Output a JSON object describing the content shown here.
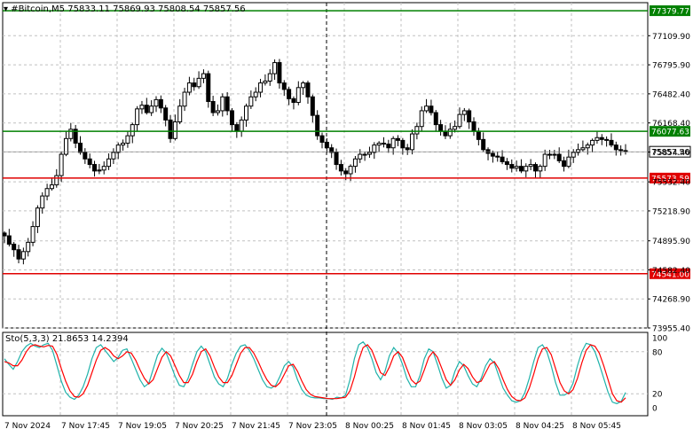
{
  "chart_header": {
    "symbol": "#Bitcoin,M5",
    "ohlc_text": "75833.11 75869.93 75808.54 75857.56"
  },
  "stoch_header": {
    "label": "Sto(5,3,3) 21.8653 14.2394"
  },
  "colors": {
    "background": "#ffffff",
    "grid": "#c0c0c0",
    "candle": "#000000",
    "green_line": "#008000",
    "red_line": "#e00000",
    "stoch_main": "#20b2aa",
    "stoch_signal": "#ff0000",
    "current_price_label": "#ffffff"
  },
  "chart_data": {
    "type": "candlestick",
    "price_axis": {
      "ylim": [
        73955.4,
        77466.6
      ],
      "ticks": [
        "77109.90",
        "76795.90",
        "76482.40",
        "76168.40",
        "75854.40",
        "75532.40",
        "75218.90",
        "74895.90",
        "74582.40",
        "74268.90",
        "73955.40"
      ]
    },
    "time_axis": {
      "labels": [
        "7 Nov 2024",
        "7 Nov 17:45",
        "7 Nov 19:05",
        "7 Nov 20:25",
        "7 Nov 21:45",
        "7 Nov 23:05",
        "8 Nov 00:25",
        "8 Nov 01:45",
        "8 Nov 03:05",
        "8 Nov 04:25",
        "8 Nov 05:45"
      ]
    },
    "horizontal_levels": [
      {
        "value": 77379.77,
        "label": "77379.77",
        "color": "green"
      },
      {
        "value": 76077.63,
        "label": "76077.63",
        "color": "green"
      },
      {
        "value": 75573.59,
        "label": "75573.59",
        "color": "red"
      },
      {
        "value": 74541.0,
        "label": "74541.00",
        "color": "red"
      }
    ],
    "current_price": {
      "value": 75857.56,
      "label": "75857.56"
    },
    "close_series": [
      74950,
      74860,
      74800,
      74700,
      74780,
      74880,
      75050,
      75250,
      75380,
      75460,
      75500,
      75600,
      75830,
      76000,
      76100,
      75950,
      75850,
      75780,
      75720,
      75650,
      75660,
      75700,
      75780,
      75850,
      75930,
      75950,
      76030,
      76150,
      76320,
      76360,
      76280,
      76350,
      76420,
      76330,
      76200,
      76000,
      76180,
      76350,
      76500,
      76600,
      76560,
      76650,
      76700,
      76400,
      76280,
      76300,
      76450,
      76300,
      76150,
      76080,
      76200,
      76350,
      76450,
      76500,
      76600,
      76620,
      76700,
      76820,
      76600,
      76530,
      76430,
      76390,
      76550,
      76600,
      76450,
      76250,
      76030,
      75960,
      75900,
      75850,
      75720,
      75650,
      75620,
      75700,
      75780,
      75830,
      75830,
      75850,
      75930,
      75950,
      75940,
      75900,
      76000,
      75980,
      75900,
      75880,
      76050,
      76130,
      76300,
      76350,
      76280,
      76150,
      76080,
      76030,
      76100,
      76130,
      76260,
      76300,
      76180,
      76080,
      75990,
      75880,
      75840,
      75810,
      75800,
      75750,
      75720,
      75680,
      75700,
      75650,
      75700,
      75720,
      75650,
      75700,
      75830,
      75830,
      75830,
      75760,
      75700,
      75800,
      75850,
      75880,
      75900,
      75930,
      75980,
      76010,
      75990,
      75980,
      75930,
      75880,
      75870,
      75858
    ],
    "stochastic": {
      "name": "Sto(5,3,3)",
      "main_value": 21.8653,
      "signal_value": 14.2394,
      "levels": [
        20,
        80
      ],
      "axis_ticks": [
        "100",
        "80",
        "20",
        "0"
      ],
      "main_series": [
        70,
        62,
        55,
        66,
        80,
        88,
        92,
        88,
        86,
        90,
        92,
        82,
        60,
        38,
        22,
        15,
        12,
        18,
        30,
        48,
        70,
        86,
        90,
        82,
        74,
        66,
        72,
        82,
        84,
        70,
        55,
        40,
        30,
        35,
        55,
        75,
        85,
        78,
        62,
        45,
        32,
        30,
        42,
        62,
        80,
        88,
        80,
        62,
        44,
        34,
        30,
        42,
        62,
        78,
        88,
        90,
        82,
        70,
        55,
        40,
        30,
        28,
        32,
        45,
        60,
        66,
        58,
        40,
        26,
        18,
        15,
        14,
        14,
        13,
        13,
        12,
        15,
        14,
        18,
        40,
        70,
        90,
        94,
        86,
        70,
        50,
        40,
        52,
        74,
        86,
        78,
        62,
        42,
        30,
        30,
        46,
        70,
        84,
        80,
        62,
        42,
        28,
        32,
        52,
        66,
        60,
        46,
        34,
        30,
        42,
        60,
        70,
        64,
        46,
        28,
        18,
        10,
        8,
        10,
        22,
        42,
        66,
        86,
        90,
        80,
        60,
        36,
        18,
        18,
        22,
        35,
        60,
        80,
        92,
        90,
        80,
        62,
        42,
        22,
        8,
        6,
        9,
        21.9
      ],
      "signal_series": [
        66,
        64,
        60,
        60,
        68,
        80,
        88,
        90,
        88,
        87,
        89,
        88,
        76,
        56,
        38,
        24,
        16,
        15,
        20,
        32,
        50,
        68,
        82,
        86,
        82,
        74,
        70,
        74,
        80,
        78,
        68,
        54,
        42,
        34,
        40,
        56,
        72,
        80,
        74,
        60,
        46,
        36,
        36,
        48,
        66,
        80,
        84,
        74,
        58,
        44,
        36,
        36,
        46,
        62,
        78,
        86,
        86,
        78,
        66,
        52,
        40,
        32,
        30,
        36,
        48,
        60,
        62,
        52,
        38,
        26,
        19,
        16,
        15,
        14,
        13,
        13,
        13,
        14,
        15,
        24,
        44,
        68,
        86,
        90,
        82,
        66,
        50,
        46,
        58,
        74,
        80,
        72,
        56,
        40,
        34,
        38,
        54,
        72,
        80,
        72,
        56,
        40,
        32,
        40,
        54,
        62,
        56,
        44,
        36,
        38,
        50,
        62,
        66,
        56,
        40,
        26,
        16,
        11,
        10,
        14,
        28,
        48,
        70,
        84,
        86,
        76,
        56,
        36,
        24,
        20,
        26,
        42,
        64,
        82,
        90,
        88,
        78,
        60,
        40,
        20,
        10,
        8,
        14.2
      ]
    }
  }
}
